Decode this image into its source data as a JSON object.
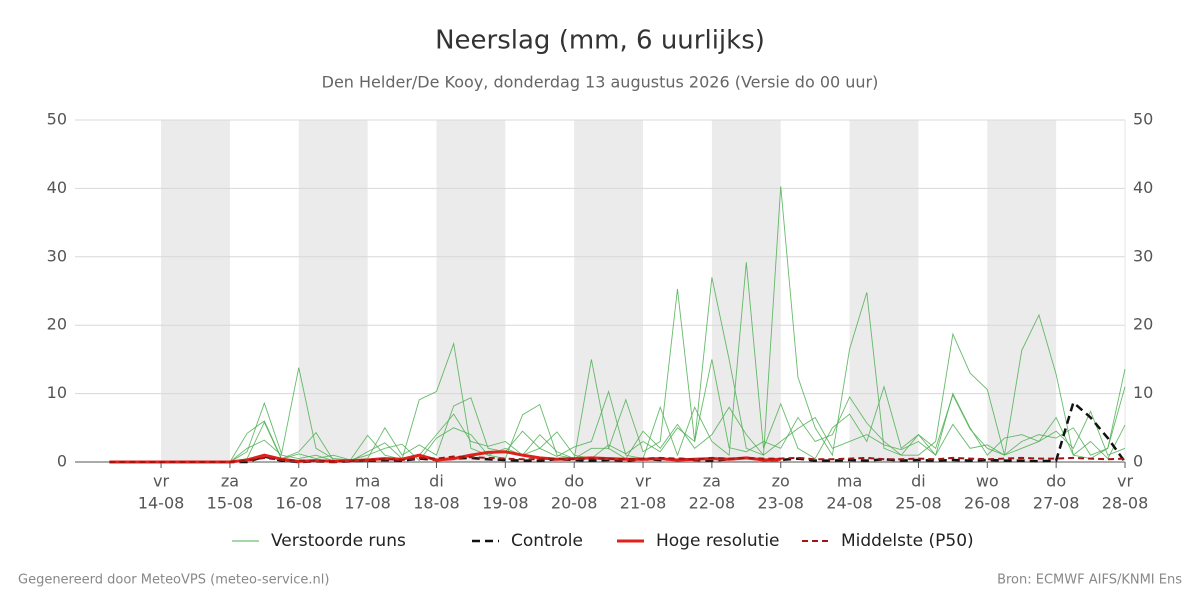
{
  "chart_data": {
    "type": "line",
    "title": "Neerslag (mm, 6 uurlijks)",
    "subtitle": "Den Helder/De Kooy, donderdag 13 augustus 2026 (Versie do 00 uur)",
    "footer_left": "Gegenereerd door MeteoVPS (meteo-service.nl)",
    "footer_right": "Bron: ECMWF AIFS/KNMI Ens",
    "x": [
      13.25,
      13.5,
      13.75,
      14,
      14.25,
      14.5,
      14.75,
      15,
      15.25,
      15.5,
      15.75,
      16,
      16.25,
      16.5,
      16.75,
      17,
      17.25,
      17.5,
      17.75,
      18,
      18.25,
      18.5,
      18.75,
      19,
      19.25,
      19.5,
      19.75,
      20,
      20.25,
      20.5,
      20.75,
      21,
      21.25,
      21.5,
      21.75,
      22,
      22.25,
      22.5,
      22.75,
      23,
      23.25,
      23.5,
      23.75,
      24,
      24.25,
      24.5,
      24.75,
      25,
      25.25,
      25.5,
      25.75,
      26,
      26.25,
      26.5,
      26.75,
      27,
      27.25,
      27.5,
      27.75,
      28
    ],
    "xlim": [
      12.75,
      28
    ],
    "xticks": [
      {
        "value": 14,
        "label": "14-08",
        "day": "vr"
      },
      {
        "value": 15,
        "label": "15-08",
        "day": "za"
      },
      {
        "value": 16,
        "label": "16-08",
        "day": "zo"
      },
      {
        "value": 17,
        "label": "17-08",
        "day": "ma"
      },
      {
        "value": 18,
        "label": "18-08",
        "day": "di"
      },
      {
        "value": 19,
        "label": "19-08",
        "day": "wo"
      },
      {
        "value": 20,
        "label": "20-08",
        "day": "do"
      },
      {
        "value": 21,
        "label": "21-08",
        "day": "vr"
      },
      {
        "value": 22,
        "label": "22-08",
        "day": "za"
      },
      {
        "value": 23,
        "label": "23-08",
        "day": "zo"
      },
      {
        "value": 24,
        "label": "24-08",
        "day": "ma"
      },
      {
        "value": 25,
        "label": "25-08",
        "day": "di"
      },
      {
        "value": 26,
        "label": "26-08",
        "day": "wo"
      },
      {
        "value": 27,
        "label": "27-08",
        "day": "do"
      },
      {
        "value": 28,
        "label": "28-08",
        "day": "vr"
      }
    ],
    "ylim": [
      0,
      50
    ],
    "yticks": [
      0,
      10,
      20,
      30,
      40,
      50
    ],
    "grid": true,
    "ensemble": {
      "name": "Verstoorde runs",
      "color": "#4caf50",
      "runs": [
        [
          0,
          0,
          0,
          0,
          0,
          0,
          0,
          0,
          1.5,
          8.6,
          1.2,
          13.8,
          2,
          0.5,
          0.3,
          3.9,
          1,
          0.4,
          9.1,
          10.3,
          17.3,
          2,
          1,
          0.5,
          6.9,
          8.4,
          1,
          0.5,
          15,
          2,
          9.1,
          1.5,
          3,
          25.3,
          3,
          27,
          15,
          2,
          1,
          40.3,
          12.4,
          5,
          1,
          16.5,
          24.8,
          2,
          1,
          1,
          3,
          18.7,
          13,
          10.6,
          1,
          16.3,
          21.5,
          12.8,
          1,
          0.5,
          2,
          13.6
        ],
        [
          0,
          0,
          0,
          0,
          0,
          0,
          0,
          0,
          4.2,
          6,
          0.5,
          1.5,
          4.3,
          0.3,
          0.2,
          0.5,
          5,
          1,
          2.5,
          1,
          8.2,
          9.4,
          2,
          1.5,
          4.5,
          2,
          0.8,
          2.2,
          3,
          10.3,
          1,
          0.5,
          8,
          1,
          8,
          3,
          1,
          29.2,
          2,
          8.5,
          2,
          0.5,
          5,
          7,
          3,
          11,
          2,
          4,
          1,
          10,
          5,
          1,
          3.5,
          4,
          3,
          6.5,
          1,
          3,
          0.5,
          5.4
        ],
        [
          0,
          0,
          0,
          0,
          0,
          0,
          0,
          0,
          2,
          3.2,
          1,
          0.5,
          1,
          0.2,
          0.1,
          1.5,
          2.8,
          0.5,
          1,
          4,
          7,
          3,
          2.3,
          3,
          1,
          2,
          4.4,
          1,
          0.5,
          2.5,
          1.2,
          3,
          1.5,
          5,
          3,
          15,
          2.1,
          1.5,
          3,
          2,
          6.5,
          3,
          4,
          9.5,
          5.7,
          3,
          1,
          4,
          2,
          9.8,
          4.8,
          2,
          1,
          3,
          4,
          3.5,
          5,
          1,
          2,
          11
        ],
        [
          0,
          0,
          0,
          0,
          0,
          0,
          0,
          0,
          0.5,
          5.8,
          0.4,
          1.2,
          0.5,
          1,
          0.3,
          1,
          2,
          2.6,
          0.2,
          3.5,
          5,
          4,
          1,
          2,
          1,
          4,
          1.5,
          0.5,
          2,
          2,
          0.5,
          4.5,
          2,
          5.5,
          2,
          4,
          8,
          4,
          1,
          3,
          4.9,
          6.5,
          2,
          3,
          4,
          2.5,
          1.8,
          3,
          1,
          5.5,
          2,
          2.5,
          1,
          2,
          3,
          4.5,
          2,
          7.4,
          1,
          2
        ]
      ]
    },
    "series": [
      {
        "name": "Controle",
        "color": "#111111",
        "dash": "8 5",
        "width": 2.5,
        "values": [
          0,
          0,
          0,
          0,
          0,
          0,
          0,
          0,
          0,
          0.8,
          0.2,
          0,
          0.1,
          0,
          0.1,
          0.2,
          0.3,
          0.2,
          0.5,
          0.3,
          0.5,
          0.6,
          0.4,
          0.3,
          0.2,
          0.2,
          0.4,
          0.3,
          0.2,
          0.3,
          0.2,
          0.4,
          0.3,
          0.5,
          0.3,
          0.2,
          0.4,
          0.6,
          0.3,
          0.3,
          0.5,
          0.2,
          0.2,
          0.3,
          0.2,
          0.4,
          0.2,
          0.3,
          0.2,
          0.3,
          0.2,
          0.3,
          0.2,
          0.2,
          0.1,
          0.2,
          8.7,
          6.5,
          3.5,
          0
        ]
      },
      {
        "name": "Hoge resolutie",
        "color": "#e0201b",
        "width": 3,
        "values": [
          0,
          0,
          0,
          0,
          0,
          0,
          0,
          0,
          0.3,
          1,
          0.4,
          0.1,
          0.2,
          0.1,
          0.2,
          0.3,
          0.5,
          0.4,
          1,
          0.3,
          0.5,
          1,
          1.4,
          1.5,
          1,
          0.6,
          0.4,
          0.5,
          0.6,
          0.5,
          0.4,
          0.4,
          0.5,
          0.3,
          0.4,
          0.5,
          0.4,
          0.6,
          0.3,
          0.4,
          null,
          null,
          null,
          null,
          null,
          null,
          null,
          null,
          null,
          null,
          null,
          null,
          null,
          null,
          null,
          null,
          null,
          null,
          null,
          null
        ]
      },
      {
        "name": "Middelste (P50)",
        "color": "#a31515",
        "dash": "6 4",
        "width": 2,
        "values": [
          0,
          0,
          0,
          0,
          0,
          0,
          0,
          0,
          0.2,
          0.6,
          0.3,
          0.2,
          0.2,
          0.1,
          0.1,
          0.3,
          0.4,
          0.3,
          0.6,
          0.5,
          0.8,
          0.7,
          0.6,
          0.5,
          0.4,
          0.4,
          0.5,
          0.4,
          0.5,
          0.5,
          0.4,
          0.5,
          0.6,
          0.5,
          0.4,
          0.6,
          0.5,
          0.6,
          0.5,
          0.5,
          0.6,
          0.4,
          0.4,
          0.5,
          0.6,
          0.4,
          0.4,
          0.5,
          0.4,
          0.6,
          0.5,
          0.4,
          0.5,
          0.6,
          0.5,
          0.5,
          0.6,
          0.5,
          0.4,
          0.5
        ]
      }
    ]
  }
}
